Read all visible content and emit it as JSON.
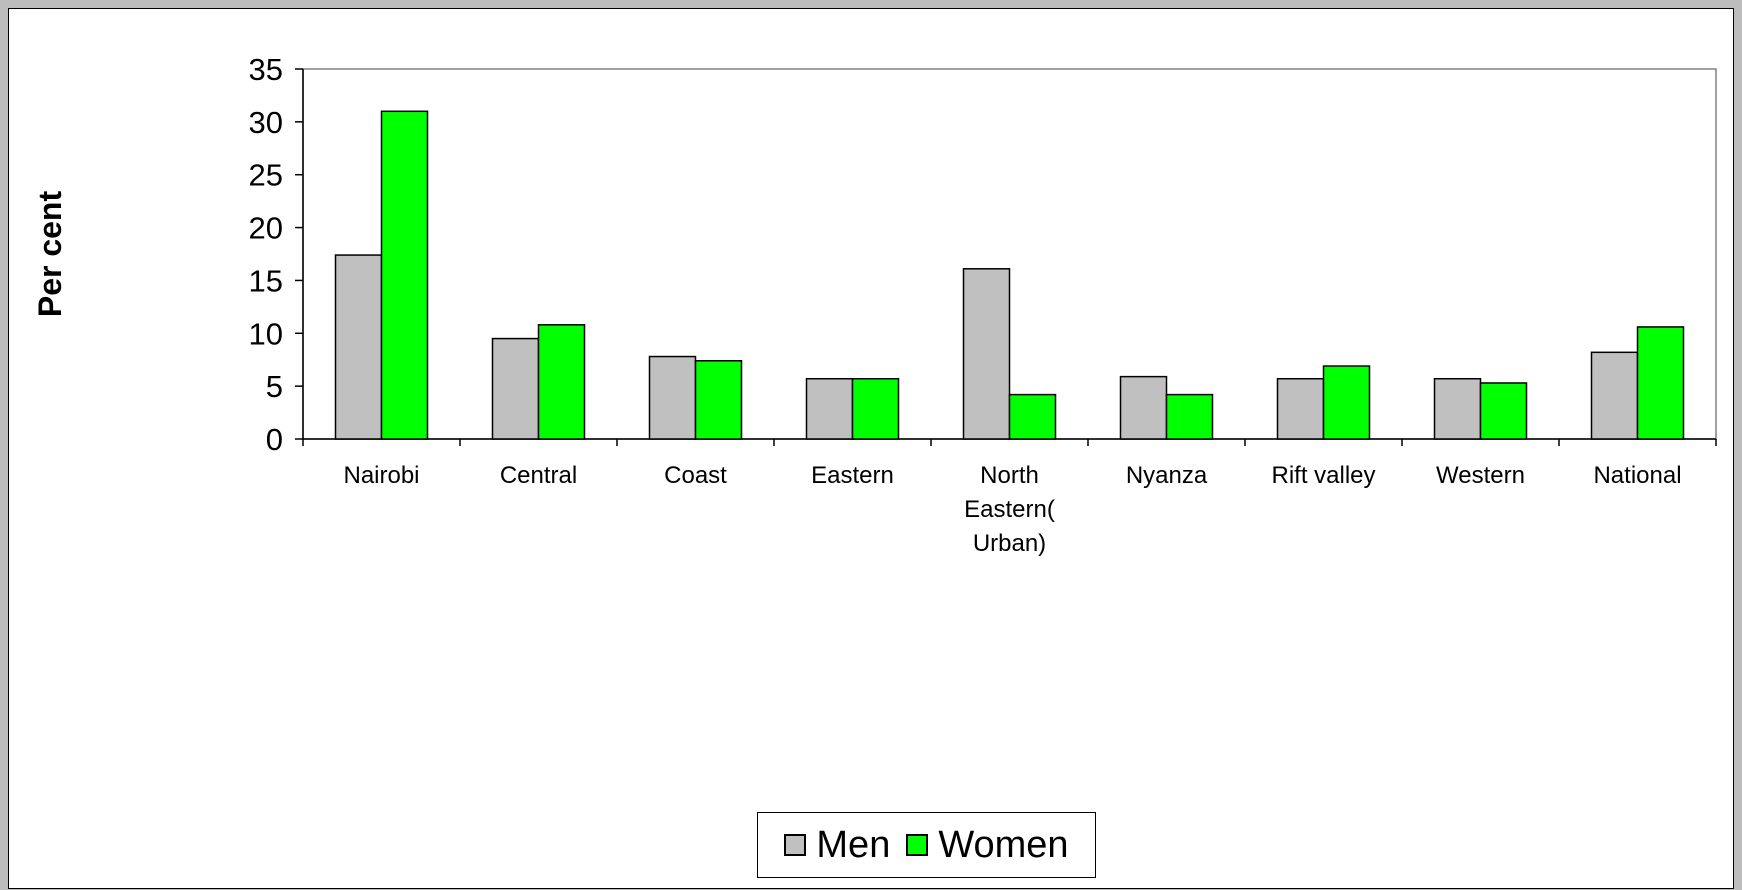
{
  "chart_data": {
    "type": "bar",
    "ylabel": "Per cent",
    "ylim": [
      0,
      35
    ],
    "yticks": [
      0,
      5,
      10,
      15,
      20,
      25,
      30,
      35
    ],
    "grid": false,
    "legend_position": "bottom",
    "categories": [
      [
        "Nairobi"
      ],
      [
        "Central"
      ],
      [
        "Coast"
      ],
      [
        "Eastern"
      ],
      [
        "North",
        "Eastern(",
        "Urban)"
      ],
      [
        "Nyanza"
      ],
      [
        "Rift valley"
      ],
      [
        "Western"
      ],
      [
        "National"
      ]
    ],
    "series": [
      {
        "name": "Men",
        "color": "#c0c0c0",
        "values": [
          17.4,
          9.5,
          7.8,
          5.7,
          16.1,
          5.9,
          5.7,
          5.7,
          8.2
        ]
      },
      {
        "name": "Women",
        "color": "#00ff00",
        "values": [
          31.0,
          10.8,
          7.4,
          5.7,
          4.2,
          4.2,
          6.9,
          5.3,
          10.6
        ]
      }
    ]
  }
}
